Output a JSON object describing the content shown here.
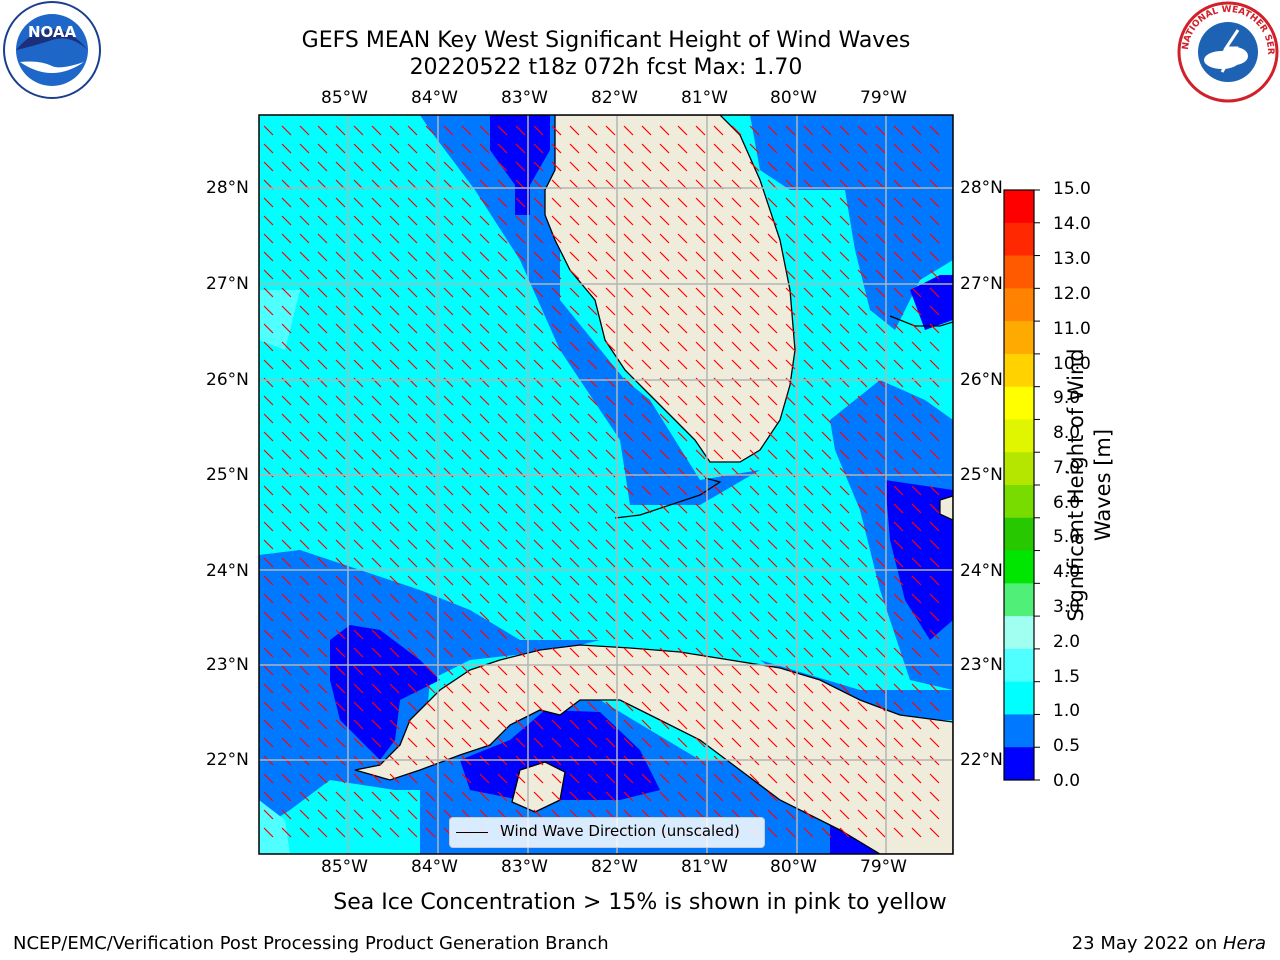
{
  "title": {
    "line1": "GEFS MEAN Key West Significant Height of Wind Waves",
    "line2": "20220522 t18z 072h fcst   Max: 1.70"
  },
  "map": {
    "lon_labels": [
      "85°W",
      "84°W",
      "83°W",
      "82°W",
      "81°W",
      "80°W",
      "79°W"
    ],
    "lat_labels": [
      "28°N",
      "27°N",
      "26°N",
      "25°N",
      "24°N",
      "23°N",
      "22°N"
    ],
    "legend_label": "Wind Wave Direction (unscaled)",
    "colors": {
      "land": "#efecdc",
      "coast": "#000000",
      "arrow": "#ff0000",
      "grid": "#b4b4b4"
    }
  },
  "colorbar": {
    "label": "Significant Height of Wind Waves [m]",
    "label_line1": "Significant Height of Wind",
    "label_line2": "Waves [m]",
    "ticks": [
      "15.0",
      "14.0",
      "13.0",
      "12.0",
      "11.0",
      "10.0",
      "9.0",
      "8.0",
      "7.0",
      "6.0",
      "5.0",
      "4.0",
      "3.0",
      "2.0",
      "1.5",
      "1.0",
      "0.5",
      "0.0"
    ],
    "levels_top_to_bottom": [
      "#ff0000",
      "#ff2800",
      "#ff5a00",
      "#ff8200",
      "#ffaa00",
      "#ffd200",
      "#ffff00",
      "#e0f500",
      "#b4e600",
      "#78dc00",
      "#28c800",
      "#00e600",
      "#50f078",
      "#a0fff0",
      "#50ffff",
      "#00ffff",
      "#0078ff",
      "#0000ff"
    ]
  },
  "notes": {
    "ice_note": "Sea Ice Concentration > 15% is shown in pink to yellow"
  },
  "footer": {
    "left": "NCEP/EMC/Verification Post Processing Product Generation Branch",
    "right_prefix": "23 May 2022 on ",
    "right_host": "Hera"
  },
  "logos": {
    "noaa": {
      "text": "NOAA"
    },
    "nws": {
      "text": "NATIONAL WEATHER SERVICE"
    }
  }
}
